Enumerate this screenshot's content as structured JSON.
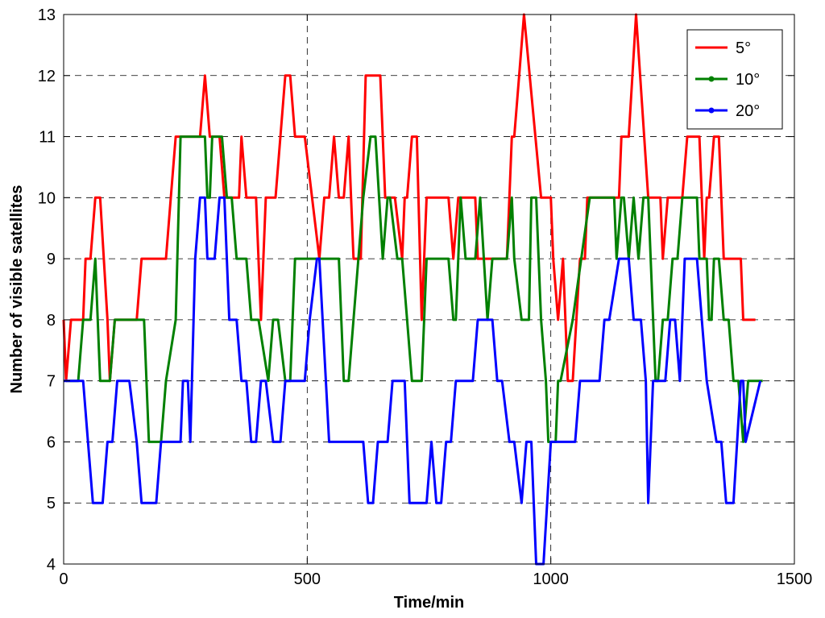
{
  "chart_data": {
    "type": "line",
    "xlabel": "Time/min",
    "ylabel": "Number of visible satellites",
    "xlim": [
      0,
      1500
    ],
    "ylim": [
      4,
      13
    ],
    "xticks": [
      0,
      500,
      1000,
      1500
    ],
    "yticks": [
      4,
      5,
      6,
      7,
      8,
      9,
      10,
      11,
      12,
      13
    ],
    "grid": "dashed",
    "legend_position": "top-right",
    "series": [
      {
        "name": "5°",
        "color": "#ff0000",
        "marker": "none",
        "points": [
          [
            0,
            8
          ],
          [
            5,
            7
          ],
          [
            15,
            8
          ],
          [
            40,
            8
          ],
          [
            45,
            9
          ],
          [
            55,
            9
          ],
          [
            65,
            10
          ],
          [
            75,
            10
          ],
          [
            90,
            8
          ],
          [
            95,
            7
          ],
          [
            105,
            8
          ],
          [
            150,
            8
          ],
          [
            160,
            9
          ],
          [
            210,
            9
          ],
          [
            220,
            10
          ],
          [
            230,
            11
          ],
          [
            280,
            11
          ],
          [
            290,
            12
          ],
          [
            300,
            11
          ],
          [
            320,
            11
          ],
          [
            330,
            10
          ],
          [
            360,
            10
          ],
          [
            365,
            11
          ],
          [
            375,
            10
          ],
          [
            395,
            10
          ],
          [
            405,
            8
          ],
          [
            415,
            10
          ],
          [
            435,
            10
          ],
          [
            455,
            12
          ],
          [
            465,
            12
          ],
          [
            475,
            11
          ],
          [
            495,
            11
          ],
          [
            525,
            9
          ],
          [
            535,
            10
          ],
          [
            545,
            10
          ],
          [
            555,
            11
          ],
          [
            565,
            10
          ],
          [
            575,
            10
          ],
          [
            585,
            11
          ],
          [
            595,
            9
          ],
          [
            610,
            9
          ],
          [
            620,
            12
          ],
          [
            650,
            12
          ],
          [
            660,
            10
          ],
          [
            680,
            10
          ],
          [
            695,
            9
          ],
          [
            700,
            10
          ],
          [
            705,
            10
          ],
          [
            715,
            11
          ],
          [
            725,
            11
          ],
          [
            735,
            8
          ],
          [
            745,
            10
          ],
          [
            790,
            10
          ],
          [
            800,
            9
          ],
          [
            810,
            10
          ],
          [
            845,
            10
          ],
          [
            850,
            9
          ],
          [
            910,
            9
          ],
          [
            920,
            11
          ],
          [
            925,
            11
          ],
          [
            935,
            12
          ],
          [
            945,
            13
          ],
          [
            980,
            10
          ],
          [
            1000,
            10
          ],
          [
            1005,
            9
          ],
          [
            1015,
            8
          ],
          [
            1025,
            9
          ],
          [
            1035,
            7
          ],
          [
            1045,
            7
          ],
          [
            1060,
            9
          ],
          [
            1070,
            9
          ],
          [
            1075,
            10
          ],
          [
            1140,
            10
          ],
          [
            1145,
            11
          ],
          [
            1160,
            11
          ],
          [
            1175,
            13
          ],
          [
            1200,
            10
          ],
          [
            1225,
            10
          ],
          [
            1230,
            9
          ],
          [
            1240,
            10
          ],
          [
            1270,
            10
          ],
          [
            1280,
            11
          ],
          [
            1305,
            11
          ],
          [
            1315,
            9
          ],
          [
            1320,
            10
          ],
          [
            1325,
            10
          ],
          [
            1335,
            11
          ],
          [
            1345,
            11
          ],
          [
            1355,
            9
          ],
          [
            1365,
            9
          ],
          [
            1370,
            9
          ],
          [
            1390,
            9
          ],
          [
            1395,
            8
          ],
          [
            1420,
            8
          ]
        ]
      },
      {
        "name": "10°",
        "color": "#008000",
        "marker": "dot",
        "points": [
          [
            5,
            7
          ],
          [
            30,
            7
          ],
          [
            40,
            8
          ],
          [
            55,
            8
          ],
          [
            65,
            9
          ],
          [
            75,
            7
          ],
          [
            95,
            7
          ],
          [
            105,
            8
          ],
          [
            150,
            8
          ],
          [
            165,
            8
          ],
          [
            175,
            6
          ],
          [
            200,
            6
          ],
          [
            210,
            7
          ],
          [
            230,
            8
          ],
          [
            240,
            11
          ],
          [
            290,
            11
          ],
          [
            295,
            10
          ],
          [
            300,
            10
          ],
          [
            305,
            11
          ],
          [
            325,
            11
          ],
          [
            335,
            10
          ],
          [
            345,
            10
          ],
          [
            355,
            9
          ],
          [
            375,
            9
          ],
          [
            385,
            8
          ],
          [
            400,
            8
          ],
          [
            420,
            7
          ],
          [
            430,
            8
          ],
          [
            440,
            8
          ],
          [
            455,
            7
          ],
          [
            465,
            7
          ],
          [
            475,
            9
          ],
          [
            535,
            9
          ],
          [
            550,
            9
          ],
          [
            565,
            9
          ],
          [
            575,
            7
          ],
          [
            585,
            7
          ],
          [
            615,
            10
          ],
          [
            630,
            11
          ],
          [
            640,
            11
          ],
          [
            655,
            9
          ],
          [
            665,
            10
          ],
          [
            670,
            10
          ],
          [
            685,
            9
          ],
          [
            695,
            9
          ],
          [
            705,
            8
          ],
          [
            715,
            7
          ],
          [
            735,
            7
          ],
          [
            745,
            9
          ],
          [
            790,
            9
          ],
          [
            800,
            8
          ],
          [
            805,
            8
          ],
          [
            815,
            10
          ],
          [
            825,
            9
          ],
          [
            845,
            9
          ],
          [
            855,
            10
          ],
          [
            870,
            8
          ],
          [
            880,
            9
          ],
          [
            910,
            9
          ],
          [
            920,
            10
          ],
          [
            925,
            9
          ],
          [
            940,
            8
          ],
          [
            955,
            8
          ],
          [
            960,
            10
          ],
          [
            970,
            10
          ],
          [
            980,
            8
          ],
          [
            990,
            7
          ],
          [
            995,
            6
          ],
          [
            1010,
            6
          ],
          [
            1015,
            7
          ],
          [
            1020,
            7
          ],
          [
            1045,
            8
          ],
          [
            1080,
            10
          ],
          [
            1130,
            10
          ],
          [
            1135,
            9
          ],
          [
            1145,
            10
          ],
          [
            1150,
            10
          ],
          [
            1160,
            9
          ],
          [
            1170,
            10
          ],
          [
            1180,
            9
          ],
          [
            1190,
            10
          ],
          [
            1200,
            10
          ],
          [
            1215,
            7
          ],
          [
            1220,
            7
          ],
          [
            1230,
            8
          ],
          [
            1240,
            8
          ],
          [
            1250,
            9
          ],
          [
            1260,
            9
          ],
          [
            1270,
            10
          ],
          [
            1300,
            10
          ],
          [
            1305,
            9
          ],
          [
            1320,
            9
          ],
          [
            1325,
            8
          ],
          [
            1330,
            8
          ],
          [
            1335,
            9
          ],
          [
            1345,
            9
          ],
          [
            1355,
            8
          ],
          [
            1365,
            8
          ],
          [
            1375,
            7
          ],
          [
            1385,
            7
          ],
          [
            1395,
            6
          ],
          [
            1405,
            7
          ],
          [
            1435,
            7
          ]
        ]
      },
      {
        "name": "20°",
        "color": "#0000ff",
        "marker": "dot",
        "points": [
          [
            0,
            7
          ],
          [
            40,
            7
          ],
          [
            50,
            6
          ],
          [
            60,
            5
          ],
          [
            80,
            5
          ],
          [
            90,
            6
          ],
          [
            100,
            6
          ],
          [
            110,
            7
          ],
          [
            135,
            7
          ],
          [
            150,
            6
          ],
          [
            160,
            5
          ],
          [
            190,
            5
          ],
          [
            200,
            6
          ],
          [
            240,
            6
          ],
          [
            245,
            7
          ],
          [
            255,
            7
          ],
          [
            260,
            6
          ],
          [
            270,
            9
          ],
          [
            280,
            10
          ],
          [
            290,
            10
          ],
          [
            295,
            9
          ],
          [
            310,
            9
          ],
          [
            320,
            10
          ],
          [
            325,
            10
          ],
          [
            330,
            10
          ],
          [
            340,
            8
          ],
          [
            355,
            8
          ],
          [
            365,
            7
          ],
          [
            375,
            7
          ],
          [
            385,
            6
          ],
          [
            395,
            6
          ],
          [
            405,
            7
          ],
          [
            415,
            7
          ],
          [
            430,
            6
          ],
          [
            445,
            6
          ],
          [
            455,
            7
          ],
          [
            495,
            7
          ],
          [
            505,
            8
          ],
          [
            520,
            9
          ],
          [
            525,
            9
          ],
          [
            545,
            6
          ],
          [
            615,
            6
          ],
          [
            625,
            5
          ],
          [
            635,
            5
          ],
          [
            645,
            6
          ],
          [
            665,
            6
          ],
          [
            675,
            7
          ],
          [
            700,
            7
          ],
          [
            710,
            5
          ],
          [
            745,
            5
          ],
          [
            755,
            6
          ],
          [
            765,
            5
          ],
          [
            775,
            5
          ],
          [
            785,
            6
          ],
          [
            795,
            6
          ],
          [
            805,
            7
          ],
          [
            840,
            7
          ],
          [
            850,
            8
          ],
          [
            880,
            8
          ],
          [
            890,
            7
          ],
          [
            900,
            7
          ],
          [
            915,
            6
          ],
          [
            925,
            6
          ],
          [
            940,
            5
          ],
          [
            950,
            6
          ],
          [
            960,
            6
          ],
          [
            970,
            4
          ],
          [
            985,
            4
          ],
          [
            1000,
            6
          ],
          [
            1050,
            6
          ],
          [
            1060,
            7
          ],
          [
            1070,
            7
          ],
          [
            1075,
            7
          ],
          [
            1100,
            7
          ],
          [
            1110,
            8
          ],
          [
            1120,
            8
          ],
          [
            1140,
            9
          ],
          [
            1160,
            9
          ],
          [
            1170,
            8
          ],
          [
            1185,
            8
          ],
          [
            1195,
            7
          ],
          [
            1200,
            5
          ],
          [
            1210,
            7
          ],
          [
            1235,
            7
          ],
          [
            1245,
            8
          ],
          [
            1255,
            8
          ],
          [
            1265,
            7
          ],
          [
            1275,
            9
          ],
          [
            1300,
            9
          ],
          [
            1310,
            8
          ],
          [
            1320,
            7
          ],
          [
            1340,
            6
          ],
          [
            1350,
            6
          ],
          [
            1360,
            5
          ],
          [
            1375,
            5
          ],
          [
            1390,
            7
          ],
          [
            1395,
            7
          ],
          [
            1400,
            6
          ],
          [
            1430,
            7
          ]
        ]
      }
    ]
  }
}
